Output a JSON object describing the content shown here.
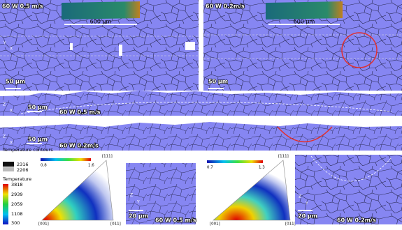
{
  "panels": {
    "top_left": {
      "label": "60 W 0.5 m/s",
      "inset_scale": "600 µm",
      "scale_bar": "50 µm",
      "axes": [
        "Y",
        "X"
      ]
    },
    "top_right": {
      "label": "60 W 0.2m/s",
      "inset_scale": "600 µm",
      "scale_bar": "50 µm"
    },
    "cross_section_1": {
      "label": "60 W 0.5 m/s",
      "scale_bar": "50 µm",
      "axes": [
        "Z",
        "X"
      ]
    },
    "cross_section_2": {
      "label": "60 W 0.2m/s",
      "scale_bar": "50 µm",
      "axes": [
        "Z",
        "X"
      ]
    },
    "pole_figure_1": {
      "colorbar": [
        0.8,
        1.6
      ],
      "corners": [
        "[111]",
        "[001]",
        "[011]"
      ]
    },
    "map_1": {
      "label": "60 W 0.5 m/s",
      "scale_bar": "20 µm",
      "axes": [
        "Z",
        "Y"
      ]
    },
    "pole_figure_2": {
      "colorbar": [
        0.7,
        1.3
      ],
      "corners": [
        "[111]",
        "[001]",
        "[011]"
      ]
    },
    "map_2": {
      "label": "60 W 0.2m/s",
      "scale_bar": "20 µm",
      "axes": [
        "Z",
        "Y"
      ]
    }
  },
  "legend": {
    "contours_title": "Temperature contours",
    "contours": [
      2316,
      2206
    ],
    "title": "Temperature",
    "values": [
      3818,
      2939,
      2059,
      1108,
      300
    ]
  }
}
